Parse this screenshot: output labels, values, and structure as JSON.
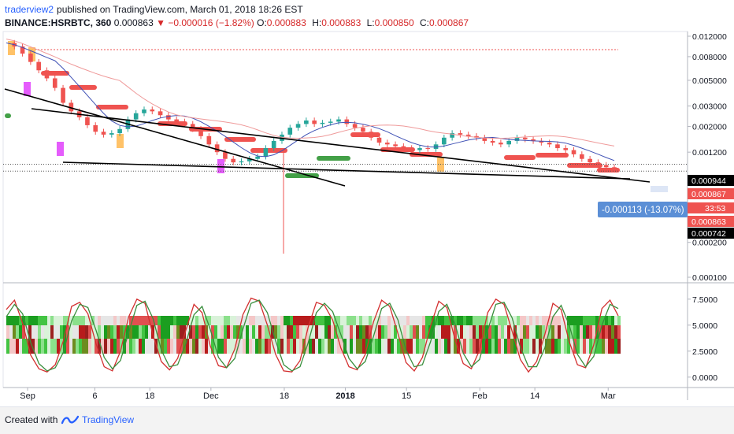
{
  "header": {
    "author": "traderview2",
    "published_text": "published on TradingView.com, March 01, 2018 18:26 EST",
    "symbol": "BINANCE:HSRBTC, 360",
    "last": "0.000863",
    "change": "−0.000016 (−1.82%)",
    "o_label": "O:",
    "o_value": "0.000883",
    "h_label": "H:",
    "h_value": "0.000883",
    "l_label": "L:",
    "l_value": "0.000850",
    "c_label": "C:",
    "c_value": "0.000867"
  },
  "footer": {
    "created_with": "Created with",
    "brand": "TradingView"
  },
  "colors": {
    "up": "#26a69a",
    "down": "#ef5350",
    "ma_blue": "#3f51b5",
    "accent": "#2962ff"
  },
  "chart_data": {
    "type": "line",
    "price_scale": "log",
    "price_ticks": [
      "0.012000",
      "0.008000",
      "0.005000",
      "0.003000",
      "0.002000",
      "0.001200",
      "0.000944",
      "0.000867",
      "0.000863",
      "0.000742",
      "0.000200",
      "0.000100"
    ],
    "price_ticks_values": [
      0.012,
      0.008,
      0.005,
      0.003,
      0.002,
      0.0012,
      0.000944,
      0.000867,
      0.000863,
      0.000742,
      0.0002,
      0.0001
    ],
    "price_labels": {
      "resistance": "0.000944",
      "current": "0.000867",
      "countdown": "33:53",
      "prev_close": "0.000863",
      "support": "0.000742",
      "measure": "-0.000113 (-13.07%)"
    },
    "x_ticks": [
      "Sep",
      "6",
      "18",
      "Dec",
      "18",
      "2018",
      "15",
      "Feb",
      "14",
      "Mar"
    ],
    "x_tick_positions": [
      0.04,
      0.15,
      0.24,
      0.34,
      0.46,
      0.56,
      0.66,
      0.78,
      0.87,
      0.99
    ],
    "price_series": [
      0.0105,
      0.0098,
      0.0085,
      0.0072,
      0.0061,
      0.0052,
      0.0043,
      0.0032,
      0.0027,
      0.0024,
      0.00205,
      0.0018,
      0.0017,
      0.00175,
      0.0019,
      0.0023,
      0.0026,
      0.0028,
      0.0027,
      0.0025,
      0.0023,
      0.0022,
      0.0021,
      0.0019,
      0.00165,
      0.0014,
      0.0012,
      0.00105,
      0.00098,
      0.001,
      0.00105,
      0.0011,
      0.0013,
      0.0015,
      0.0017,
      0.00195,
      0.0021,
      0.00225,
      0.0021,
      0.00215,
      0.0022,
      0.0023,
      0.0021,
      0.00195,
      0.0018,
      0.0016,
      0.00145,
      0.0014,
      0.00135,
      0.0013,
      0.00125,
      0.0013,
      0.00128,
      0.0014,
      0.0016,
      0.00175,
      0.0017,
      0.00165,
      0.0016,
      0.0015,
      0.00145,
      0.0014,
      0.0015,
      0.0016,
      0.00155,
      0.0015,
      0.00145,
      0.0014,
      0.0013,
      0.00125,
      0.00115,
      0.00105,
      0.00098,
      0.00093,
      0.00089,
      0.000867
    ],
    "indicator_ticks": [
      "7.5000",
      "5.0000",
      "2.5000",
      "0.0000"
    ],
    "indicator_ticks_values": [
      7.5,
      5,
      2.5,
      0
    ],
    "indicator_range": [
      -1,
      9
    ],
    "osc_red": [
      6.5,
      7.4,
      5.2,
      2.1,
      0.8,
      0.5,
      1.2,
      3.5,
      6.8,
      7.2,
      6.1,
      3.2,
      1.0,
      0.6,
      2.5,
      5.8,
      7.5,
      7.1,
      4.0,
      1.5,
      0.7,
      1.8,
      4.5,
      7.0,
      6.2,
      3.0,
      1.1,
      0.9,
      2.7,
      6.0,
      7.6,
      7.3,
      5.0,
      2.2,
      0.6,
      0.5,
      1.6,
      4.8,
      7.2,
      6.9,
      5.5,
      2.8,
      1.0,
      0.7,
      2.2,
      5.3,
      7.4,
      6.8,
      4.2,
      1.4,
      0.6,
      1.9,
      4.9,
      7.3,
      6.7,
      3.6,
      1.3,
      0.8,
      2.6,
      6.2,
      7.5,
      7.0,
      4.4,
      1.7,
      0.5,
      1.5,
      4.1,
      7.1,
      6.5,
      3.4,
      1.2,
      0.9,
      3.1,
      6.6,
      7.4,
      5.9
    ],
    "osc_green": [
      5.8,
      7.0,
      6.1,
      3.3,
      1.3,
      0.6,
      0.9,
      2.4,
      5.4,
      7.0,
      6.7,
      4.5,
      1.9,
      0.8,
      1.6,
      4.3,
      6.9,
      7.3,
      5.6,
      2.6,
      1.0,
      1.2,
      3.2,
      6.0,
      6.8,
      4.6,
      1.9,
      0.9,
      1.8,
      4.6,
      7.1,
      7.4,
      6.2,
      3.5,
      1.2,
      0.6,
      1.0,
      3.3,
      6.2,
      7.1,
      6.3,
      4.1,
      1.8,
      0.8,
      1.5,
      3.9,
      6.6,
      7.1,
      5.5,
      2.6,
      1.0,
      1.2,
      3.4,
      6.3,
      7.0,
      5.1,
      2.3,
      1.0,
      1.7,
      4.5,
      7.0,
      7.2,
      5.7,
      2.9,
      1.0,
      1.0,
      2.8,
      5.8,
      6.9,
      5.0,
      2.2,
      1.0,
      2.0,
      5.0,
      7.0,
      6.6
    ]
  }
}
